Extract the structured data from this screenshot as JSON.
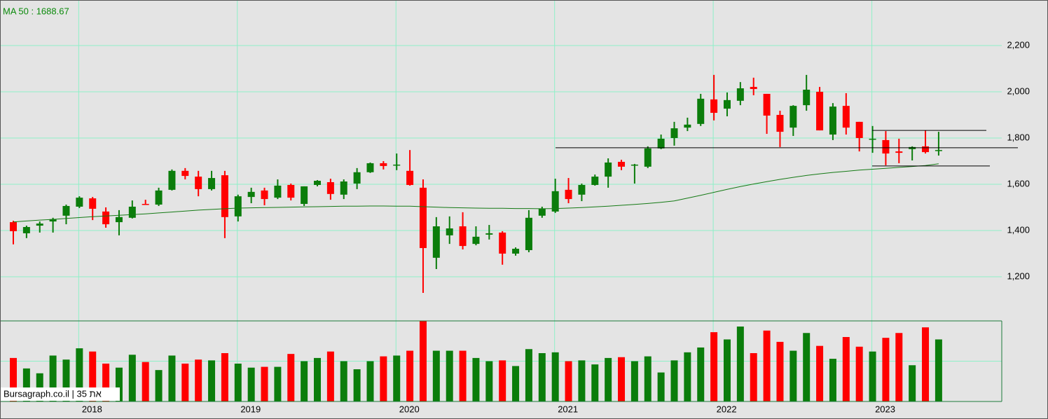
{
  "chart_data": {
    "type": "candlestick",
    "title": "MA 50 : 1688.67",
    "watermark": "Bursagraph.co.il | 35 תא",
    "categories": [
      null,
      null,
      null,
      null,
      null,
      "2018",
      null,
      null,
      null,
      null,
      null,
      null,
      null,
      null,
      null,
      null,
      null,
      "2019",
      null,
      null,
      null,
      null,
      null,
      null,
      null,
      null,
      null,
      null,
      null,
      "2020",
      null,
      null,
      null,
      null,
      null,
      null,
      null,
      null,
      null,
      null,
      null,
      "2021",
      null,
      null,
      null,
      null,
      null,
      null,
      null,
      null,
      null,
      null,
      null,
      "2022",
      null,
      null,
      null,
      null,
      null,
      null,
      null,
      null,
      null,
      null,
      null,
      "2023",
      null,
      null,
      null,
      null,
      null
    ],
    "open": [
      1436,
      1388,
      1421,
      1439,
      1464,
      1503,
      1539,
      1482,
      1436,
      1455,
      1515,
      1512,
      1576,
      1658,
      1633,
      1579,
      1639,
      1461,
      1545,
      1573,
      1542,
      1597,
      1515,
      1597,
      1609,
      1555,
      1603,
      1652,
      1691,
      1682,
      1658,
      1585,
      1282,
      1379,
      1418,
      1342,
      1382,
      1391,
      1300,
      1315,
      1464,
      1482,
      1576,
      1555,
      1597,
      1633,
      1697,
      1682,
      1676,
      1755,
      1800,
      1845,
      1861,
      1967,
      1927,
      1961,
      2021,
      1991,
      1900,
      1845,
      1942,
      2000,
      1815,
      1939,
      1870,
      1794,
      1791,
      1742,
      1752,
      1764,
      1745
    ],
    "high": [
      1442,
      1421,
      1439,
      1455,
      1512,
      1548,
      1545,
      1500,
      1488,
      1530,
      1533,
      1585,
      1664,
      1670,
      1658,
      1658,
      1658,
      1555,
      1585,
      1585,
      1621,
      1603,
      1591,
      1618,
      1624,
      1621,
      1670,
      1694,
      1700,
      1733,
      1748,
      1621,
      1458,
      1461,
      1479,
      1418,
      1424,
      1397,
      1327,
      1488,
      1503,
      1624,
      1627,
      1603,
      1642,
      1712,
      1706,
      1688,
      1764,
      1815,
      1870,
      1888,
      1991,
      2073,
      1997,
      2042,
      2061,
      1991,
      1918,
      1942,
      2073,
      2021,
      1951,
      1994,
      1870,
      1852,
      1830,
      1797,
      1764,
      1833,
      1827
    ],
    "low": [
      1340,
      1367,
      1391,
      1391,
      1427,
      1497,
      1445,
      1412,
      1379,
      1452,
      1512,
      1506,
      1573,
      1621,
      1548,
      1573,
      1367,
      1439,
      1518,
      1509,
      1536,
      1530,
      1506,
      1591,
      1533,
      1536,
      1579,
      1649,
      1664,
      1661,
      1594,
      1130,
      1233,
      1342,
      1318,
      1336,
      1361,
      1252,
      1291,
      1306,
      1455,
      1476,
      1518,
      1527,
      1594,
      1585,
      1661,
      1603,
      1670,
      1752,
      1767,
      1830,
      1852,
      1876,
      1894,
      1942,
      1985,
      1818,
      1761,
      1809,
      1918,
      1833,
      1791,
      1815,
      1742,
      1736,
      1682,
      1691,
      1703,
      1733,
      1724
    ],
    "close": [
      1397,
      1415,
      1430,
      1449,
      1506,
      1542,
      1494,
      1427,
      1458,
      1503,
      1512,
      1573,
      1658,
      1636,
      1579,
      1627,
      1458,
      1548,
      1567,
      1536,
      1594,
      1542,
      1591,
      1615,
      1558,
      1612,
      1652,
      1691,
      1679,
      1685,
      1597,
      1324,
      1418,
      1409,
      1333,
      1373,
      1388,
      1300,
      1321,
      1455,
      1494,
      1570,
      1536,
      1597,
      1633,
      1694,
      1676,
      1685,
      1755,
      1797,
      1842,
      1858,
      1970,
      1909,
      1964,
      2015,
      2012,
      1897,
      1827,
      1939,
      2009,
      1833,
      1936,
      1845,
      1800,
      1797,
      1733,
      1736,
      1761,
      1739,
      1748
    ],
    "up_color": "#0b7d0b",
    "down_color": "#ff0000",
    "ma_values": [
      1437,
      1441,
      1445,
      1448,
      1452,
      1456,
      1460,
      1463,
      1466,
      1469,
      1472,
      1476,
      1480,
      1484,
      1488,
      1491,
      1494,
      1497,
      1498,
      1499,
      1500,
      1501,
      1502,
      1503,
      1504,
      1505,
      1505,
      1506,
      1506,
      1505,
      1505,
      1503,
      1501,
      1499,
      1498,
      1497,
      1496,
      1496,
      1495,
      1495,
      1494,
      1495,
      1497,
      1499,
      1502,
      1505,
      1509,
      1513,
      1517,
      1522,
      1528,
      1540,
      1552,
      1565,
      1578,
      1590,
      1601,
      1611,
      1621,
      1630,
      1638,
      1645,
      1651,
      1656,
      1661,
      1665,
      1669,
      1673,
      1677,
      1681,
      1688.67
    ],
    "ma_color": "#157a15",
    "levels": [
      1758,
      1833,
      1679
    ],
    "levels_color": "#000000",
    "ylim": [
      1018,
      2397
    ],
    "yticks": [
      {
        "value": 1200,
        "label": "1,200"
      },
      {
        "value": 1400,
        "label": "1,400"
      },
      {
        "value": 1600,
        "label": "1,600"
      },
      {
        "value": 1800,
        "label": "1,800"
      },
      {
        "value": 2000,
        "label": "2,000"
      },
      {
        "value": 2200,
        "label": "2,200"
      }
    ],
    "grid": true,
    "grid_color": "#8ff0c8",
    "volume": {
      "values": [
        54,
        41,
        35,
        57,
        52,
        66,
        62,
        47,
        42,
        58,
        49,
        39,
        57,
        47,
        52,
        51,
        60,
        47,
        42,
        43,
        43,
        59,
        50,
        54,
        62,
        50,
        40,
        50,
        56,
        57,
        63,
        100,
        63,
        63,
        63,
        54,
        50,
        51,
        44,
        65,
        60,
        61,
        50,
        51,
        46,
        54,
        55,
        50,
        56,
        36,
        51,
        61,
        67,
        86,
        77,
        93,
        60,
        88,
        74,
        63,
        85,
        69,
        53,
        80,
        68,
        62,
        79,
        85,
        45,
        92,
        77
      ],
      "ylim": [
        0,
        100
      ],
      "yticks": [
        50
      ]
    }
  }
}
